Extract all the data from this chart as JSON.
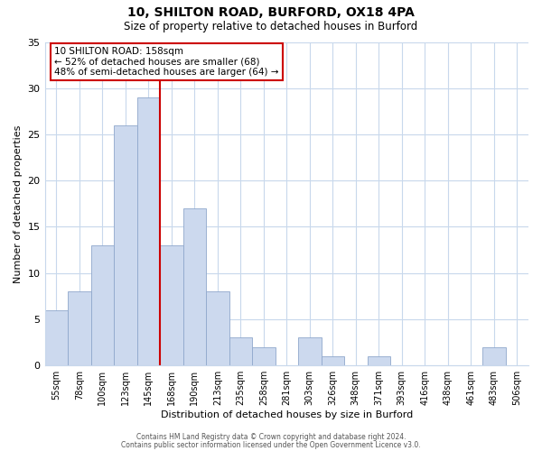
{
  "title": "10, SHILTON ROAD, BURFORD, OX18 4PA",
  "subtitle": "Size of property relative to detached houses in Burford",
  "xlabel": "Distribution of detached houses by size in Burford",
  "ylabel": "Number of detached properties",
  "bar_labels": [
    "55sqm",
    "78sqm",
    "100sqm",
    "123sqm",
    "145sqm",
    "168sqm",
    "190sqm",
    "213sqm",
    "235sqm",
    "258sqm",
    "281sqm",
    "303sqm",
    "326sqm",
    "348sqm",
    "371sqm",
    "393sqm",
    "416sqm",
    "438sqm",
    "461sqm",
    "483sqm",
    "506sqm"
  ],
  "bar_values": [
    6,
    8,
    13,
    26,
    29,
    13,
    17,
    8,
    3,
    2,
    0,
    3,
    1,
    0,
    1,
    0,
    0,
    0,
    0,
    2,
    0
  ],
  "bar_color": "#ccd9ee",
  "bar_edge_color": "#8fa8cc",
  "vline_x": 4.5,
  "vline_color": "#cc0000",
  "ylim": [
    0,
    35
  ],
  "yticks": [
    0,
    5,
    10,
    15,
    20,
    25,
    30,
    35
  ],
  "annotation_title": "10 SHILTON ROAD: 158sqm",
  "annotation_line1": "← 52% of detached houses are smaller (68)",
  "annotation_line2": "48% of semi-detached houses are larger (64) →",
  "annotation_box_color": "#ffffff",
  "annotation_box_edge": "#cc0000",
  "footer1": "Contains HM Land Registry data © Crown copyright and database right 2024.",
  "footer2": "Contains public sector information licensed under the Open Government Licence v3.0.",
  "background_color": "#ffffff",
  "grid_color": "#c8d8ec"
}
